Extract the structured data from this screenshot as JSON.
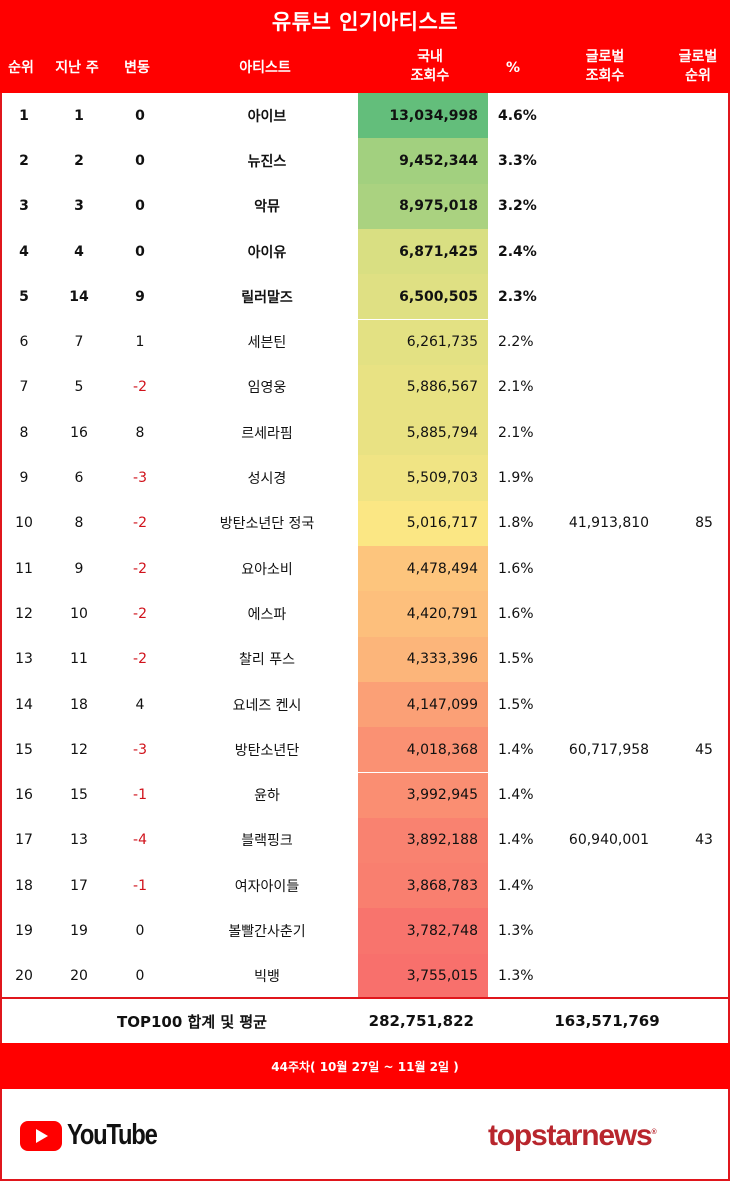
{
  "header": {
    "title": "유튜브 인기아티스트",
    "columns": {
      "rank": "순위",
      "last_week": "지난 주",
      "change": "변동",
      "artist": "아티스트",
      "domestic_views_l1": "국내",
      "domestic_views_l2": "조회수",
      "percent": "%",
      "global_views_l1": "글로벌",
      "global_views_l2": "조회수",
      "global_rank_l1": "글로벌",
      "global_rank_l2": "순위"
    }
  },
  "rows": [
    {
      "rank": "1",
      "last_week": "1",
      "change": "0",
      "artist": "아이브",
      "views": "13,034,998",
      "percent": "4.6%",
      "global_views": "",
      "global_rank": "",
      "color": "#63be7b"
    },
    {
      "rank": "2",
      "last_week": "2",
      "change": "0",
      "artist": "뉴진스",
      "views": "9,452,344",
      "percent": "3.3%",
      "global_views": "",
      "global_rank": "",
      "color": "#a2d07f"
    },
    {
      "rank": "3",
      "last_week": "3",
      "change": "0",
      "artist": "악뮤",
      "views": "8,975,018",
      "percent": "3.2%",
      "global_views": "",
      "global_rank": "",
      "color": "#aad280"
    },
    {
      "rank": "4",
      "last_week": "4",
      "change": "0",
      "artist": "아이유",
      "views": "6,871,425",
      "percent": "2.4%",
      "global_views": "",
      "global_rank": "",
      "color": "#d9df82"
    },
    {
      "rank": "5",
      "last_week": "14",
      "change": "9",
      "artist": "릴러말즈",
      "views": "6,500,505",
      "percent": "2.3%",
      "global_views": "",
      "global_rank": "",
      "color": "#dfe083"
    },
    {
      "rank": "6",
      "last_week": "7",
      "change": "1",
      "artist": "세븐틴",
      "views": "6,261,735",
      "percent": "2.2%",
      "global_views": "",
      "global_rank": "",
      "color": "#e3e183"
    },
    {
      "rank": "7",
      "last_week": "5",
      "change": "-2",
      "artist": "임영웅",
      "views": "5,886,567",
      "percent": "2.1%",
      "global_views": "",
      "global_rank": "",
      "color": "#e8e283"
    },
    {
      "rank": "8",
      "last_week": "16",
      "change": "8",
      "artist": "르세라핌",
      "views": "5,885,794",
      "percent": "2.1%",
      "global_views": "",
      "global_rank": "",
      "color": "#e9e283"
    },
    {
      "rank": "9",
      "last_week": "6",
      "change": "-3",
      "artist": "성시경",
      "views": "5,509,703",
      "percent": "1.9%",
      "global_views": "",
      "global_rank": "",
      "color": "#f0e484"
    },
    {
      "rank": "10",
      "last_week": "8",
      "change": "-2",
      "artist": "방탄소년단 정국",
      "views": "5,016,717",
      "percent": "1.8%",
      "global_views": "41,913,810",
      "global_rank": "85",
      "color": "#fbe784"
    },
    {
      "rank": "11",
      "last_week": "9",
      "change": "-2",
      "artist": "요아소비",
      "views": "4,478,494",
      "percent": "1.6%",
      "global_views": "",
      "global_rank": "",
      "color": "#fdc57d"
    },
    {
      "rank": "12",
      "last_week": "10",
      "change": "-2",
      "artist": "에스파",
      "views": "4,420,791",
      "percent": "1.6%",
      "global_views": "",
      "global_rank": "",
      "color": "#fdbf7c"
    },
    {
      "rank": "13",
      "last_week": "11",
      "change": "-2",
      "artist": "찰리 푸스",
      "views": "4,333,396",
      "percent": "1.5%",
      "global_views": "",
      "global_rank": "",
      "color": "#fcb57a"
    },
    {
      "rank": "14",
      "last_week": "18",
      "change": "4",
      "artist": "요네즈 켄시",
      "views": "4,147,099",
      "percent": "1.5%",
      "global_views": "",
      "global_rank": "",
      "color": "#fba076"
    },
    {
      "rank": "15",
      "last_week": "12",
      "change": "-3",
      "artist": "방탄소년단",
      "views": "4,018,368",
      "percent": "1.4%",
      "global_views": "60,717,958",
      "global_rank": "45",
      "color": "#fa9173"
    },
    {
      "rank": "16",
      "last_week": "15",
      "change": "-1",
      "artist": "윤하",
      "views": "3,992,945",
      "percent": "1.4%",
      "global_views": "",
      "global_rank": "",
      "color": "#fa8e72"
    },
    {
      "rank": "17",
      "last_week": "13",
      "change": "-4",
      "artist": "블랙핑크",
      "views": "3,892,188",
      "percent": "1.4%",
      "global_views": "60,940,001",
      "global_rank": "43",
      "color": "#f98270"
    },
    {
      "rank": "18",
      "last_week": "17",
      "change": "-1",
      "artist": "여자아이들",
      "views": "3,868,783",
      "percent": "1.4%",
      "global_views": "",
      "global_rank": "",
      "color": "#f97f6f"
    },
    {
      "rank": "19",
      "last_week": "19",
      "change": "0",
      "artist": "볼빨간사춘기",
      "views": "3,782,748",
      "percent": "1.3%",
      "global_views": "",
      "global_rank": "",
      "color": "#f8746d"
    },
    {
      "rank": "20",
      "last_week": "20",
      "change": "0",
      "artist": "빅뱅",
      "views": "3,755,015",
      "percent": "1.3%",
      "global_views": "",
      "global_rank": "",
      "color": "#f8706c"
    }
  ],
  "total": {
    "label": "TOP100 합계 및 평균",
    "domestic_views": "282,751,822",
    "global_views": "163,571,769"
  },
  "footer": {
    "period": "44주차( 10월 27일 ~ 11월 2일 )"
  },
  "logos": {
    "youtube": "YouTube",
    "publisher": "topstarnews",
    "publisher_mark": "®"
  },
  "colors": {
    "brand_red": "#ff0000",
    "negative_change": "#d0121b",
    "publisher": "#b8262d"
  }
}
